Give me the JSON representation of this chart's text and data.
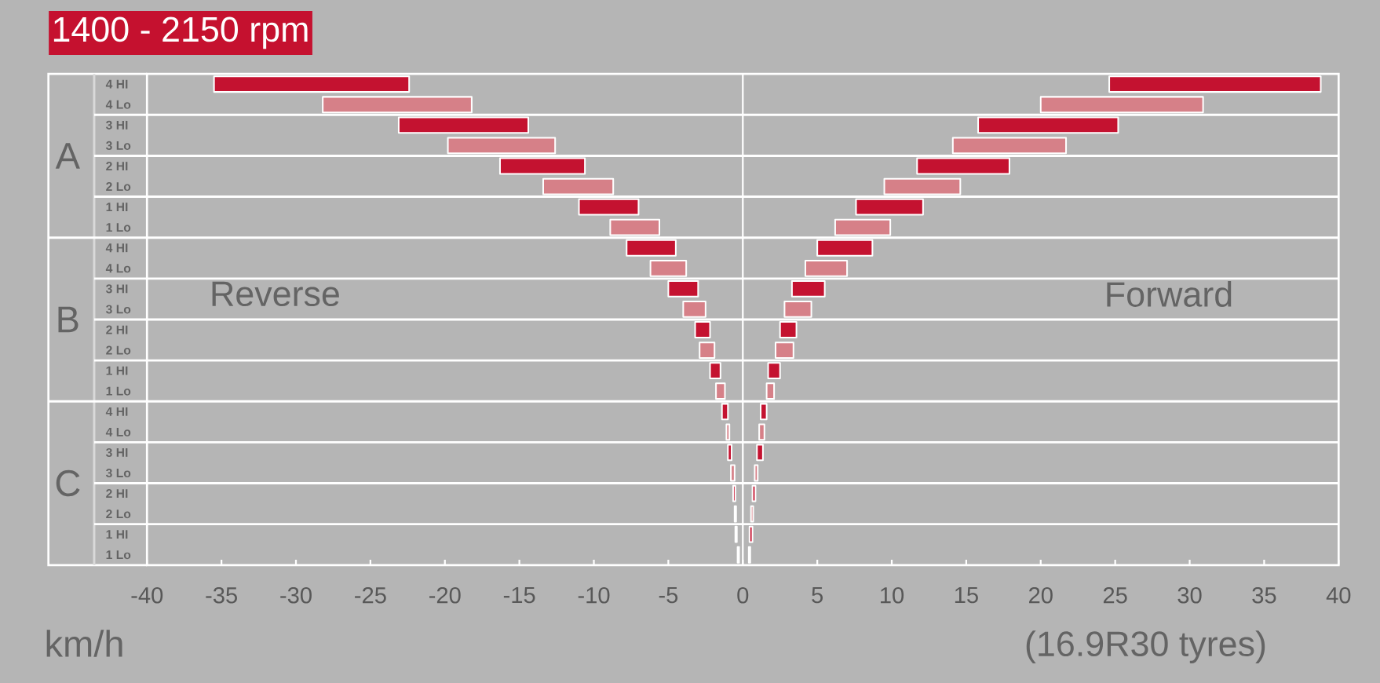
{
  "chart_data": {
    "type": "bar",
    "orientation": "horizontal",
    "title": "1400 - 2150 rpm",
    "xlabel": "km/h",
    "categories": [
      "4 HI",
      "4 Lo",
      "3 HI",
      "3 Lo",
      "2 HI",
      "2 Lo",
      "1 HI",
      "1 Lo",
      "4 HI",
      "4 Lo",
      "3 HI",
      "3 Lo",
      "2 HI",
      "2 Lo",
      "1 HI",
      "1 Lo",
      "4 HI",
      "4 Lo",
      "3 HI",
      "3 Lo",
      "2 HI",
      "2 Lo",
      "1 HI",
      "1 Lo"
    ],
    "series": [
      {
        "colors": [
          "#c41230",
          "#d68088",
          "#c41230",
          "#d68088",
          "#c41230",
          "#d68088",
          "#c41230",
          "#d68088",
          "#c41230",
          "#d68088",
          "#c41230",
          "#d68088",
          "#c41230",
          "#d68088",
          "#c41230",
          "#d68088",
          "#c41230",
          "#d68088",
          "#c41230",
          "#d68088",
          "#c41230",
          "#d68088",
          "#c41230",
          "#d68088"
        ],
        "base": [
          -35.5,
          -28.2,
          -23.1,
          -19.8,
          -16.3,
          -13.4,
          -11.0,
          -8.9,
          -7.8,
          -6.2,
          -5.0,
          -4.0,
          -3.2,
          -2.9,
          -2.2,
          -1.8,
          -1.4,
          -1.1,
          -1.0,
          -0.8,
          -0.65,
          -0.55,
          -0.5,
          -0.35
        ],
        "values": [
          13.1,
          10.0,
          8.7,
          7.2,
          5.7,
          4.7,
          4.0,
          3.3,
          3.3,
          2.4,
          2.0,
          1.5,
          1.0,
          1.0,
          0.7,
          0.6,
          0.4,
          0.2,
          0.25,
          0.25,
          0.15,
          0.1,
          0.1,
          0.1
        ]
      },
      {
        "colors": [
          "#c41230",
          "#d68088",
          "#c41230",
          "#d68088",
          "#c41230",
          "#d68088",
          "#c41230",
          "#d68088",
          "#c41230",
          "#d68088",
          "#c41230",
          "#d68088",
          "#c41230",
          "#d68088",
          "#c41230",
          "#d68088",
          "#c41230",
          "#d68088",
          "#c41230",
          "#d68088",
          "#c41230",
          "#d68088",
          "#c41230",
          "#d68088"
        ],
        "base": [
          24.6,
          20.0,
          15.8,
          14.1,
          11.7,
          9.5,
          7.6,
          6.2,
          5.0,
          4.2,
          3.3,
          2.8,
          2.5,
          2.2,
          1.7,
          1.6,
          1.2,
          1.1,
          0.95,
          0.8,
          0.65,
          0.55,
          0.45,
          0.4
        ],
        "values": [
          14.2,
          10.9,
          9.4,
          7.6,
          6.2,
          5.1,
          4.5,
          3.7,
          3.7,
          2.8,
          2.2,
          1.8,
          1.1,
          1.2,
          0.8,
          0.5,
          0.4,
          0.35,
          0.4,
          0.2,
          0.2,
          0.15,
          0.2,
          0.1
        ]
      }
    ],
    "xlim": [
      -40,
      40
    ],
    "xticks": [
      -40,
      -35,
      -30,
      -25,
      -20,
      -15,
      -10,
      -5,
      0,
      5,
      10,
      15,
      20,
      25,
      30,
      35,
      40
    ],
    "grid": "y",
    "ref_lines": [
      {
        "axis": "x",
        "value": 0,
        "color": "#ffffff"
      }
    ],
    "annotations": [
      "A",
      "B",
      "C",
      "Reverse",
      "Forward",
      "(16.9R30 tyres)"
    ]
  }
}
